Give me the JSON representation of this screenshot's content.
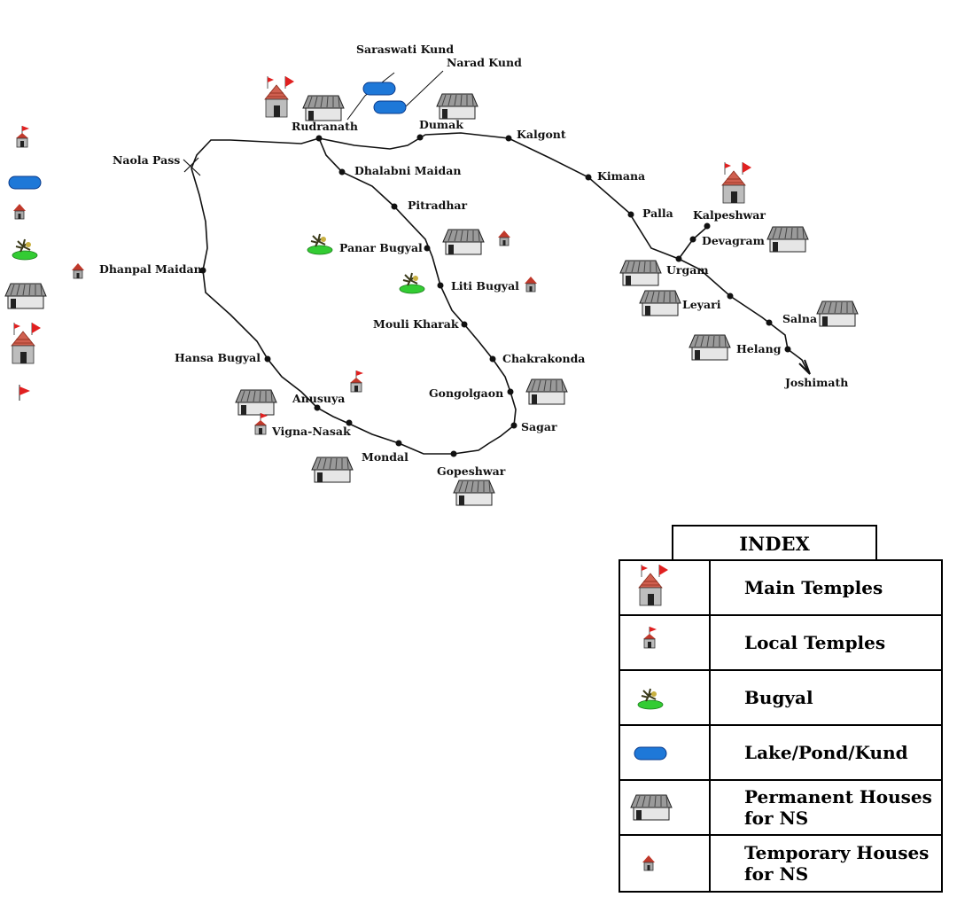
{
  "places": {
    "saraswati_kund": "Saraswati Kund",
    "narad_kund": "Narad Kund",
    "rudranath": "Rudranath",
    "dumak": "Dumak",
    "kalgont": "Kalgont",
    "naola_pass": "Naola Pass",
    "dhalabni_maidan": "Dhalabni Maidan",
    "kimana": "Kimana",
    "pitradhar": "Pitradhar",
    "palla": "Palla",
    "kalpeshwar": "Kalpeshwar",
    "devagram": "Devagram",
    "panar_bugyal": "Panar Bugyal",
    "dhanpal_maidan": "Dhanpal Maidan",
    "urgam": "Urgam",
    "liti_bugyal": "Liti Bugyal",
    "leyari": "Leyari",
    "mouli_kharak": "Mouli Kharak",
    "salna": "Salna",
    "helang": "Helang",
    "hansa_bugyal": "Hansa Bugyal",
    "chakrakonda": "Chakrakonda",
    "joshimath": "Joshimath",
    "anusuya": "Anusuya",
    "gongolgaon": "Gongolgaon",
    "sagar": "Sagar",
    "vigna_nasak": "Vigna-Nasak",
    "mondal": "Mondal",
    "gopeshwar": "Gopeshwar"
  },
  "index": {
    "title": "INDEX",
    "rows": [
      {
        "icon": "main-temple-icon",
        "label": "Main Temples"
      },
      {
        "icon": "local-temple-icon",
        "label": "Local Temples"
      },
      {
        "icon": "bugyal-icon",
        "label": "Bugyal"
      },
      {
        "icon": "lake-icon",
        "label": "Lake/Pond/Kund"
      },
      {
        "icon": "permanent-house-icon",
        "label": "Permanent Houses\nfor NS"
      },
      {
        "icon": "temporary-house-icon",
        "label": "Temporary Houses\n for NS"
      }
    ]
  },
  "colors": {
    "flag_red": "#e02020",
    "roof_red": "#c0392b",
    "lake_blue": "#1e78d8",
    "bugyal_green": "#33cc33",
    "house_gray": "#d8d8d8"
  }
}
